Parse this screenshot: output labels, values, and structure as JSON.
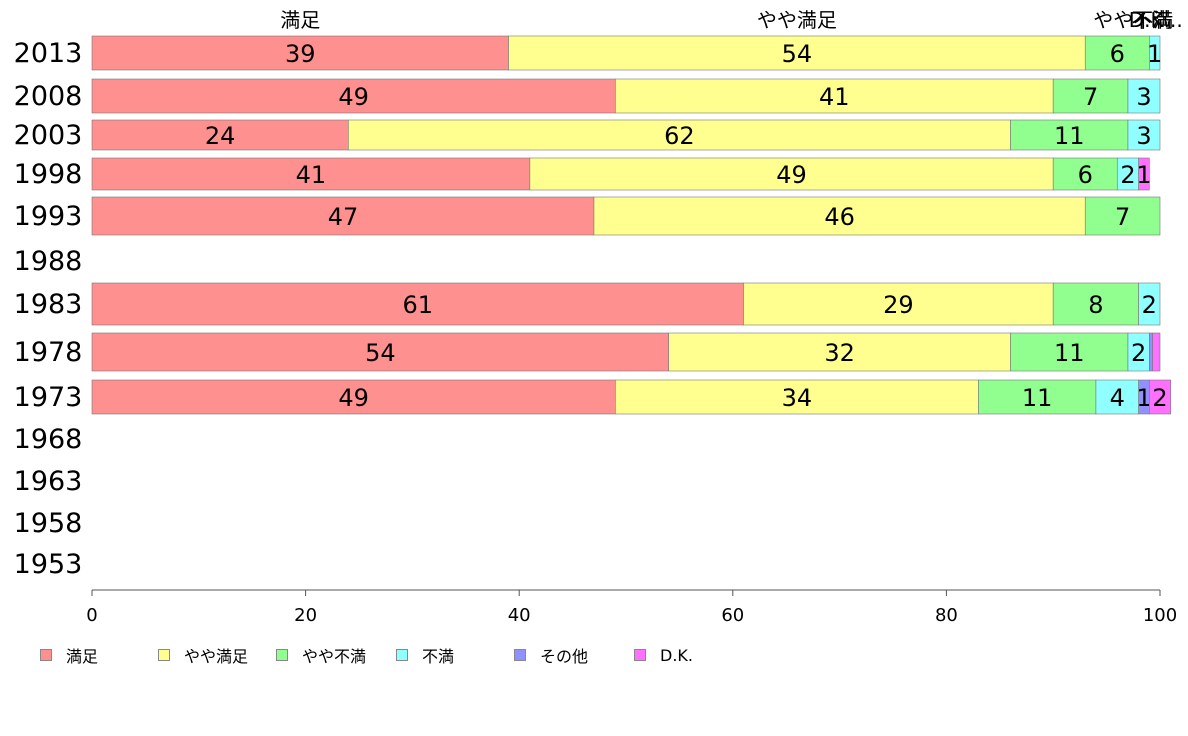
{
  "chart_data": {
    "type": "bar",
    "orientation": "horizontal",
    "stacked": true,
    "categories": [
      "2013",
      "2008",
      "2003",
      "1998",
      "1993",
      "1988",
      "1983",
      "1978",
      "1973",
      "1968",
      "1963",
      "1958",
      "1953"
    ],
    "series": [
      {
        "name": "満足",
        "color": "#ff9090",
        "values": [
          39,
          49,
          24,
          41,
          47,
          null,
          61,
          54,
          49,
          null,
          null,
          null,
          null
        ]
      },
      {
        "name": "やや満足",
        "color": "#ffff90",
        "values": [
          54,
          41,
          62,
          49,
          46,
          null,
          29,
          32,
          34,
          null,
          null,
          null,
          null
        ]
      },
      {
        "name": "やや不満",
        "color": "#90ff90",
        "values": [
          6,
          7,
          11,
          6,
          7,
          null,
          8,
          11,
          11,
          null,
          null,
          null,
          null
        ]
      },
      {
        "name": "不満",
        "color": "#90ffff",
        "values": [
          1,
          3,
          3,
          2,
          0,
          null,
          2,
          2,
          4,
          null,
          null,
          null,
          null
        ]
      },
      {
        "name": "その他",
        "color": "#9090ff",
        "values": [
          0,
          0,
          0,
          0,
          0,
          null,
          0,
          0.3,
          1,
          null,
          null,
          null,
          null
        ]
      },
      {
        "name": "D.K.",
        "color": "#ff70ff",
        "values": [
          0,
          0,
          0,
          1,
          0,
          null,
          0,
          0.7,
          2,
          null,
          null,
          null,
          null
        ]
      }
    ],
    "top_labels": [
      "満足",
      "やや満足",
      "やや不満",
      "不満",
      "D.K..."
    ],
    "xlim": [
      0,
      100
    ],
    "xticks": [
      0,
      20,
      40,
      60,
      80,
      100
    ],
    "grid": false,
    "legend_position": "bottom"
  }
}
